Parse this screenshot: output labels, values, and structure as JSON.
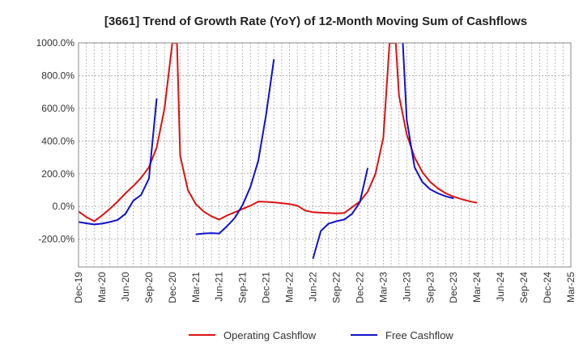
{
  "chart_data": {
    "type": "line",
    "title": "[3661]  Trend of Growth Rate (YoY) of 12-Month Moving Sum of Cashflows",
    "xlabel": "",
    "ylabel": "",
    "ylim": [
      -370,
      1000
    ],
    "y_ticks": [
      {
        "value": 1000,
        "label": "1000.0%"
      },
      {
        "value": 800,
        "label": "800.0%"
      },
      {
        "value": 600,
        "label": "600.0%"
      },
      {
        "value": 400,
        "label": "400.0%"
      },
      {
        "value": 200,
        "label": "200.0%"
      },
      {
        "value": 0,
        "label": "0.0%"
      },
      {
        "value": -200,
        "label": "-200.0%"
      }
    ],
    "x_ticks": [
      "Dec-19",
      "Mar-20",
      "Jun-20",
      "Sep-20",
      "Dec-20",
      "Mar-21",
      "Jun-21",
      "Sep-21",
      "Dec-21",
      "Mar-22",
      "Jun-22",
      "Sep-22",
      "Dec-22",
      "Mar-23",
      "Jun-23",
      "Sep-23",
      "Dec-23",
      "Mar-24",
      "Jun-24",
      "Sep-24",
      "Dec-24",
      "Mar-25"
    ],
    "grid": true,
    "legend_position": "bottom-center",
    "series": [
      {
        "name": "Operating Cashflow",
        "color": "#dd1111",
        "points": [
          [
            0,
            -30
          ],
          [
            1,
            -65
          ],
          [
            2,
            -90
          ],
          [
            3,
            -55
          ],
          [
            4,
            -15
          ],
          [
            5,
            30
          ],
          [
            6,
            80
          ],
          [
            7,
            125
          ],
          [
            8,
            175
          ],
          [
            9,
            240
          ],
          [
            10,
            360
          ],
          [
            11,
            600
          ],
          [
            12,
            1000
          ],
          [
            12.6,
            1000
          ],
          [
            13,
            310
          ],
          [
            14,
            100
          ],
          [
            15,
            15
          ],
          [
            16,
            -30
          ],
          [
            17,
            -60
          ],
          [
            18,
            -80
          ],
          [
            19,
            -55
          ],
          [
            20,
            -35
          ],
          [
            21,
            -15
          ],
          [
            22,
            5
          ],
          [
            23,
            30
          ],
          [
            24,
            28
          ],
          [
            25,
            25
          ],
          [
            26,
            20
          ],
          [
            27,
            15
          ],
          [
            28,
            5
          ],
          [
            29,
            -25
          ],
          [
            30,
            -35
          ],
          [
            31,
            -38
          ],
          [
            32,
            -40
          ],
          [
            33,
            -42
          ],
          [
            34,
            -40
          ],
          [
            35,
            -5
          ],
          [
            36,
            30
          ],
          [
            37,
            90
          ],
          [
            38,
            200
          ],
          [
            39,
            420
          ],
          [
            39.8,
            1000
          ],
          [
            40.6,
            1000
          ],
          [
            41,
            680
          ],
          [
            42,
            440
          ],
          [
            43,
            300
          ],
          [
            44,
            210
          ],
          [
            45,
            150
          ],
          [
            46,
            110
          ],
          [
            47,
            80
          ],
          [
            48,
            60
          ],
          [
            49,
            45
          ],
          [
            50,
            32
          ],
          [
            51,
            22
          ]
        ]
      },
      {
        "name": "Free Cashflow",
        "color": "#1111cc",
        "segments": [
          [
            [
              0,
              -95
            ],
            [
              1,
              -103
            ],
            [
              2,
              -110
            ],
            [
              3,
              -105
            ],
            [
              4,
              -95
            ],
            [
              5,
              -82
            ],
            [
              6,
              -45
            ],
            [
              7,
              35
            ],
            [
              8,
              70
            ],
            [
              9,
              170
            ],
            [
              10,
              660
            ]
          ],
          [
            [
              15,
              -170
            ],
            [
              16,
              -165
            ],
            [
              17,
              -163
            ],
            [
              18,
              -165
            ],
            [
              19,
              -120
            ],
            [
              20,
              -70
            ],
            [
              21,
              10
            ],
            [
              22,
              120
            ],
            [
              23,
              280
            ],
            [
              24,
              560
            ],
            [
              25,
              900
            ]
          ],
          [
            [
              30,
              -320
            ],
            [
              31,
              -150
            ],
            [
              32,
              -105
            ],
            [
              33,
              -90
            ],
            [
              34,
              -80
            ],
            [
              35,
              -45
            ],
            [
              36,
              25
            ],
            [
              37,
              235
            ]
          ],
          [
            [
              41.5,
              1000
            ],
            [
              42,
              530
            ],
            [
              43,
              240
            ],
            [
              44,
              150
            ],
            [
              45,
              105
            ],
            [
              46,
              80
            ],
            [
              47,
              62
            ],
            [
              48,
              50
            ]
          ]
        ]
      }
    ]
  }
}
